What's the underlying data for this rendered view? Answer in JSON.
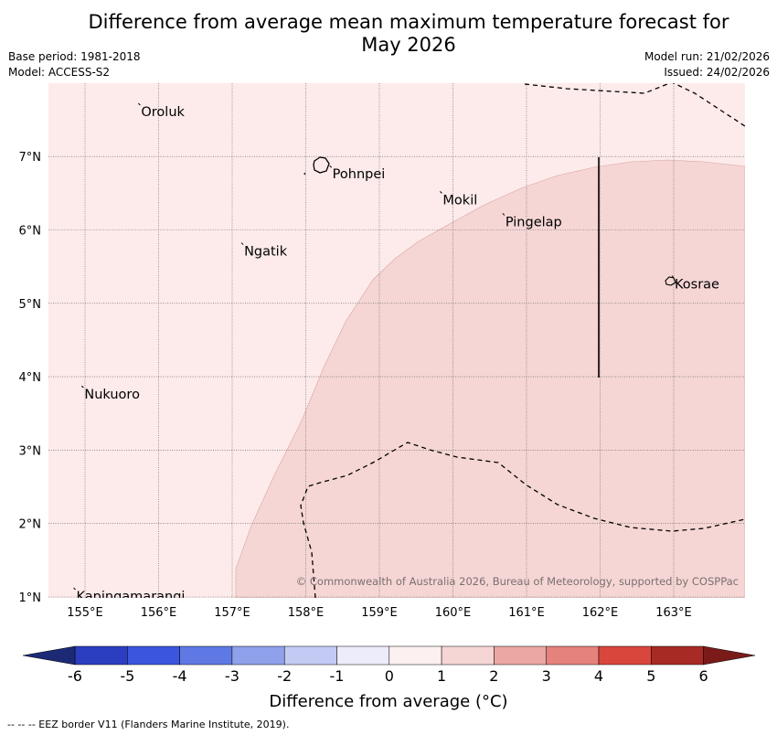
{
  "title": {
    "line1": "Difference from average mean maximum temperature forecast for",
    "line2": "May 2026"
  },
  "meta_left": {
    "base_period": "Base period: 1981-2018",
    "model": "Model: ACCESS-S2"
  },
  "meta_right": {
    "model_run": "Model run: 21/02/2026",
    "issued": "Issued: 24/02/2026"
  },
  "map": {
    "lon_labels": [
      "155°E",
      "156°E",
      "157°E",
      "158°E",
      "159°E",
      "160°E",
      "161°E",
      "162°E",
      "163°E"
    ],
    "lat_labels": [
      "7°N",
      "6°N",
      "5°N",
      "4°N",
      "3°N",
      "2°N",
      "1°N"
    ],
    "places": [
      {
        "name": "Oroluk",
        "lon": 155.75,
        "lat": 7.7
      },
      {
        "name": "Pohnpei",
        "lon": 158.35,
        "lat": 6.85
      },
      {
        "name": "Mokil",
        "lon": 159.85,
        "lat": 6.5
      },
      {
        "name": "Pingelap",
        "lon": 160.7,
        "lat": 6.2
      },
      {
        "name": "Ngatik",
        "lon": 157.15,
        "lat": 5.8
      },
      {
        "name": "Kosrae",
        "lon": 163.0,
        "lat": 5.35
      },
      {
        "name": "Nukuoro",
        "lon": 154.98,
        "lat": 3.85
      },
      {
        "name": "Kapingamarangi",
        "lon": 154.87,
        "lat": 1.1
      }
    ],
    "copyright": "© Commonwealth of Australia 2026, Bureau of Meteorology, supported by COSPPac",
    "colors": {
      "anomaly_0_1": "#fcebea",
      "anomaly_1_2": "#f5d6d5"
    }
  },
  "colorbar": {
    "ticks": [
      "-6",
      "-5",
      "-4",
      "-3",
      "-2",
      "-1",
      "0",
      "1",
      "2",
      "3",
      "4",
      "5",
      "6"
    ],
    "colors": [
      "#253494",
      "#2b3ec0",
      "#3c55de",
      "#5f79e4",
      "#8fa1ea",
      "#c3cbf4",
      "#ececfa",
      "#fdf0f0",
      "#f5d6d5",
      "#eaa7a4",
      "#e5827d",
      "#d9463c",
      "#a82a24"
    ],
    "under_color": "#1c2a75",
    "over_color": "#7a1b1a",
    "label": "Difference from average (°C)"
  },
  "footer": "--  --  -- EEZ border V11 (Flanders Marine Institute, 2019)."
}
